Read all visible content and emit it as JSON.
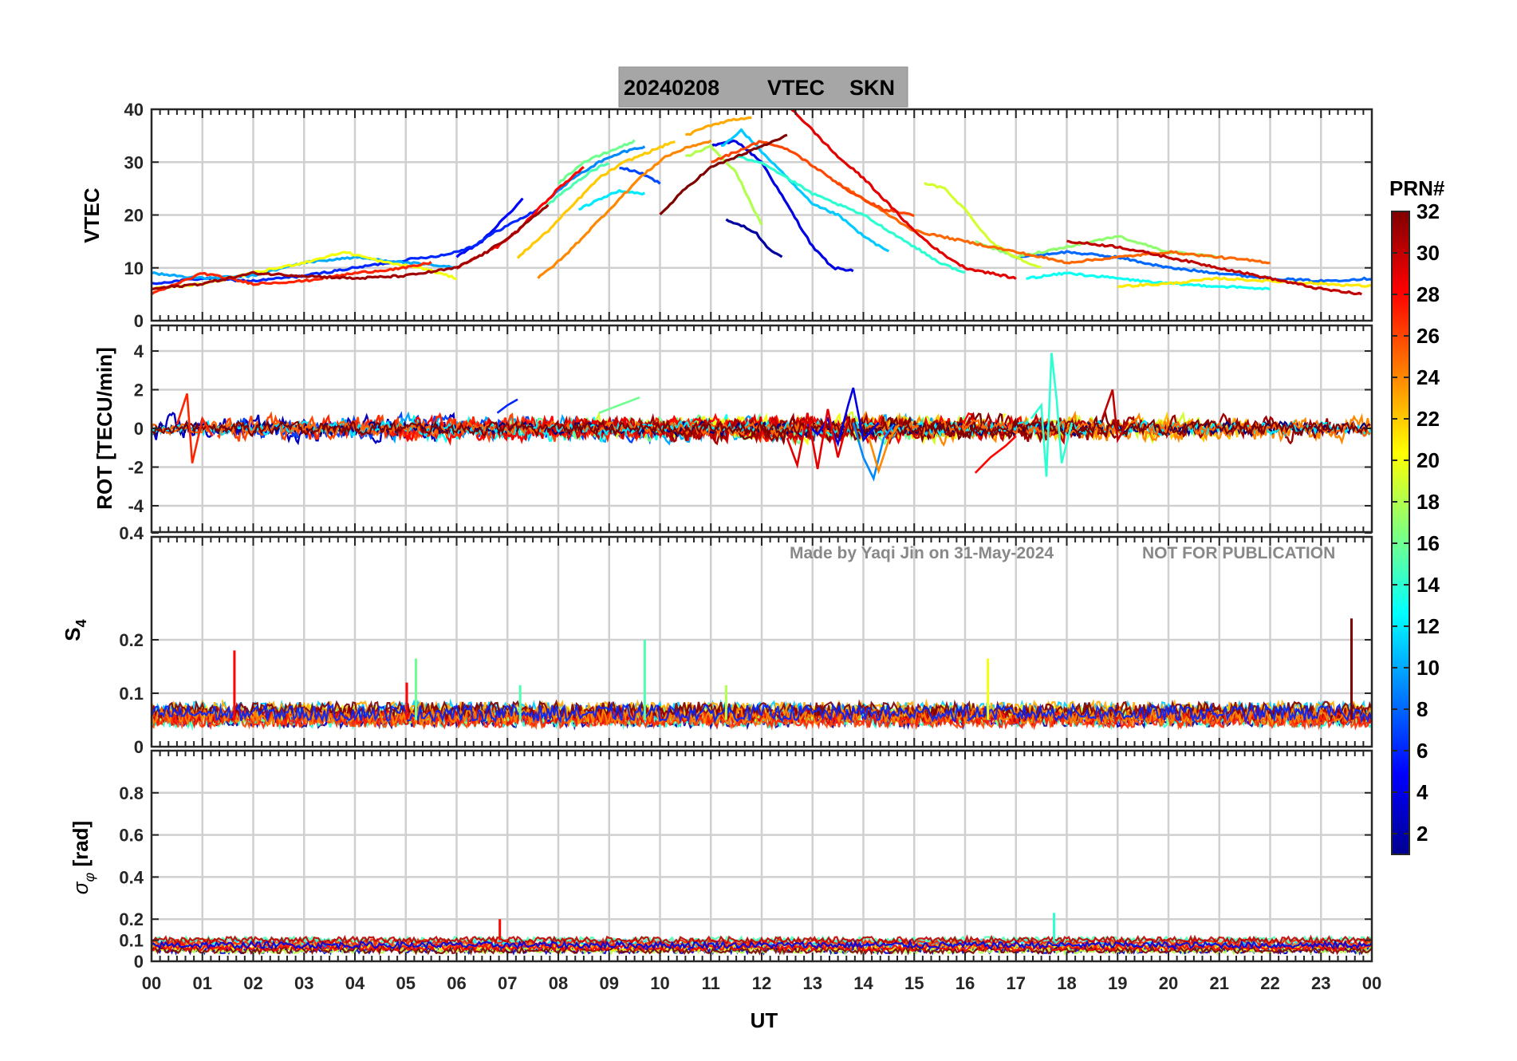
{
  "title": {
    "date": "20240208",
    "quantity": "VTEC",
    "station": "SKN"
  },
  "watermark": {
    "credit": "Made by Yaqi Jin on 31-May-2024",
    "notice": "NOT FOR PUBLICATION"
  },
  "xaxis": {
    "label": "UT",
    "ticks": [
      "00",
      "01",
      "02",
      "03",
      "04",
      "05",
      "06",
      "07",
      "08",
      "09",
      "10",
      "11",
      "12",
      "13",
      "14",
      "15",
      "16",
      "17",
      "18",
      "19",
      "20",
      "21",
      "22",
      "23",
      "00"
    ]
  },
  "colorbar": {
    "label": "PRN#",
    "ticks": [
      "2",
      "4",
      "6",
      "8",
      "10",
      "12",
      "14",
      "16",
      "18",
      "20",
      "22",
      "24",
      "26",
      "28",
      "30",
      "32"
    ],
    "range": [
      1,
      32
    ]
  },
  "chart_data": [
    {
      "type": "line",
      "id": "vtec",
      "title": "20240208 VTEC SKN",
      "ylabel": "VTEC",
      "yticks": [
        "0",
        "10",
        "20",
        "30",
        "40"
      ],
      "ylim": [
        0,
        40
      ],
      "xlim": [
        0,
        24
      ],
      "series": [
        {
          "name": "PRN 2",
          "prn": 2,
          "x": [
            11.3,
            11.6,
            11.9,
            12.1,
            12.4
          ],
          "y": [
            19,
            18,
            16.5,
            14,
            12
          ]
        },
        {
          "name": "PRN 4",
          "prn": 4,
          "x": [
            11.0,
            11.5,
            12.0,
            12.5,
            13.0,
            13.4,
            13.8
          ],
          "y": [
            33,
            34,
            30,
            22,
            14,
            10,
            9.5
          ]
        },
        {
          "name": "PRN 5",
          "prn": 5,
          "x": [
            6.0,
            6.5,
            7.0,
            7.3
          ],
          "y": [
            12,
            15,
            20,
            23
          ]
        },
        {
          "name": "PRN 6",
          "prn": 6,
          "x": [
            0,
            1,
            2,
            3,
            4,
            5,
            5.8,
            6.3,
            6.8,
            7.6
          ],
          "y": [
            7,
            8,
            7.5,
            8.5,
            10,
            11.5,
            12.5,
            14,
            17,
            21
          ]
        },
        {
          "name": "PRN 7",
          "prn": 7,
          "x": [
            9.2,
            9.6,
            10.0
          ],
          "y": [
            29,
            28,
            26
          ]
        },
        {
          "name": "PRN 8",
          "prn": 8,
          "x": [
            17,
            18,
            19,
            20,
            21,
            22,
            23,
            24
          ],
          "y": [
            12,
            13,
            12,
            10,
            9,
            8,
            7.5,
            8
          ]
        },
        {
          "name": "PRN 9",
          "prn": 9,
          "x": [
            7.8,
            8.3,
            8.8,
            9.3,
            9.7
          ],
          "y": [
            23,
            27,
            30,
            32,
            33
          ]
        },
        {
          "name": "PRN 10",
          "prn": 10,
          "x": [
            0,
            1,
            2,
            3,
            4,
            5,
            6
          ],
          "y": [
            9,
            8,
            8.5,
            11,
            12,
            11,
            10
          ]
        },
        {
          "name": "PRN 11",
          "prn": 11,
          "x": [
            11.2,
            11.6,
            12.0,
            12.5,
            13.0,
            13.5,
            14.0,
            14.5
          ],
          "y": [
            33,
            36,
            32,
            27,
            22,
            20,
            16,
            13
          ]
        },
        {
          "name": "PRN 12",
          "prn": 12,
          "x": [
            8.4,
            8.8,
            9.2,
            9.7
          ],
          "y": [
            21,
            23,
            24.5,
            24
          ]
        },
        {
          "name": "PRN 13",
          "prn": 13,
          "x": [
            17.2,
            18.0,
            19.0,
            20.0,
            21.0,
            22.0
          ],
          "y": [
            8,
            9,
            8,
            7,
            6.5,
            6
          ]
        },
        {
          "name": "PRN 14",
          "prn": 14,
          "x": [
            11.5,
            12.0,
            12.5,
            13.0,
            13.5,
            14.0,
            14.5,
            15.0,
            15.5,
            16.0
          ],
          "y": [
            31,
            30,
            27,
            24,
            22,
            20,
            17,
            14,
            11,
            9
          ]
        },
        {
          "name": "PRN 15",
          "prn": 15,
          "x": [
            7.3,
            7.8,
            8.2,
            8.6,
            9.0
          ],
          "y": [
            18,
            22,
            25,
            28,
            30
          ]
        },
        {
          "name": "PRN 16",
          "prn": 16,
          "x": [
            8.0,
            8.5,
            9.0,
            9.5
          ],
          "y": [
            26,
            30,
            32,
            34
          ]
        },
        {
          "name": "PRN 17",
          "prn": 17,
          "x": [
            16.2,
            17.0,
            18.0,
            19.0,
            20.0,
            21.0
          ],
          "y": [
            15,
            12,
            14,
            16,
            13,
            12
          ]
        },
        {
          "name": "PRN 18",
          "prn": 18,
          "x": [
            10.5,
            11.0,
            11.5,
            12.0
          ],
          "y": [
            31,
            33,
            28,
            18
          ]
        },
        {
          "name": "PRN 19",
          "prn": 19,
          "x": [
            15.2,
            15.6,
            16.0,
            16.5,
            17.0,
            17.5
          ],
          "y": [
            26,
            25,
            21,
            15,
            12,
            10
          ]
        },
        {
          "name": "PRN 20",
          "prn": 20,
          "x": [
            0,
            1,
            2,
            3,
            3.8,
            4.6,
            5.3,
            6.0
          ],
          "y": [
            6,
            7,
            9,
            11,
            13,
            11,
            10,
            8
          ]
        },
        {
          "name": "PRN 21",
          "prn": 21,
          "x": [
            19.0,
            20.0,
            21.0,
            22.0,
            23.0,
            24.0
          ],
          "y": [
            6.5,
            7,
            8,
            7.5,
            7,
            6.5
          ]
        },
        {
          "name": "PRN 22",
          "prn": 22,
          "x": [
            7.2,
            7.8,
            8.3,
            8.8,
            9.3,
            9.8,
            10.3
          ],
          "y": [
            12,
            17,
            22,
            27,
            30,
            32,
            34
          ]
        },
        {
          "name": "PRN 23",
          "prn": 23,
          "x": [
            10.5,
            11.0,
            11.4,
            11.8
          ],
          "y": [
            35,
            37,
            38,
            38.5
          ]
        },
        {
          "name": "PRN 24",
          "prn": 24,
          "x": [
            7.6,
            8.1,
            8.6,
            9.1,
            9.6,
            10.1,
            10.6,
            11.0
          ],
          "y": [
            8,
            12,
            17,
            22,
            27,
            31,
            33,
            34
          ]
        },
        {
          "name": "PRN 25",
          "prn": 25,
          "x": [
            13.5,
            14.0,
            14.5,
            15.0,
            15.5,
            16.0,
            17.0,
            18.0,
            19.0,
            20.0,
            21.0,
            22.0
          ],
          "y": [
            26,
            23,
            20,
            17,
            16,
            15,
            13,
            11,
            12,
            13,
            12,
            11
          ]
        },
        {
          "name": "PRN 26",
          "prn": 26,
          "x": [
            11.0,
            11.5,
            12.0,
            12.6,
            13.2,
            13.8,
            14.4,
            15.0
          ],
          "y": [
            30,
            32,
            34,
            32,
            28,
            24,
            21,
            20
          ]
        },
        {
          "name": "PRN 27",
          "prn": 27,
          "x": [
            0,
            0.5,
            1.0,
            1.5,
            2.0,
            3.0,
            4.0,
            5.0,
            5.5
          ],
          "y": [
            5,
            7,
            9,
            8,
            7,
            7.5,
            9,
            10,
            11
          ]
        },
        {
          "name": "PRN 28",
          "prn": 28,
          "x": [
            6.0,
            6.4,
            6.8,
            7.2,
            7.6,
            8.0,
            8.5
          ],
          "y": [
            10,
            12,
            14,
            17,
            21,
            25,
            29
          ]
        },
        {
          "name": "PRN 29",
          "prn": 29,
          "x": [
            12.5,
            13.0,
            13.5,
            14.0,
            14.5,
            15.0,
            15.5,
            16.0,
            16.5,
            17.0
          ],
          "y": [
            41,
            36,
            31,
            27,
            22,
            17,
            13,
            10,
            9,
            8
          ]
        },
        {
          "name": "PRN 30",
          "prn": 30,
          "x": [
            18.0,
            19.0,
            20.0,
            21.0,
            22.0,
            23.0,
            23.8
          ],
          "y": [
            15,
            14,
            12,
            10,
            8,
            6,
            5
          ]
        },
        {
          "name": "PRN 31",
          "prn": 31,
          "x": [
            0,
            1,
            2,
            3,
            4,
            5,
            6,
            6.6,
            7.2,
            7.8
          ],
          "y": [
            6,
            7,
            9,
            8.5,
            8,
            8.5,
            10,
            13,
            17,
            22
          ]
        },
        {
          "name": "PRN 32",
          "prn": 32,
          "x": [
            10.0,
            10.5,
            11.0,
            11.5,
            12.0,
            12.5
          ],
          "y": [
            20,
            25,
            29,
            31,
            33,
            35
          ]
        }
      ]
    },
    {
      "type": "line",
      "id": "rot",
      "ylabel": "ROT [TECU/min]",
      "yticks": [
        "-4",
        "-2",
        "0",
        "2",
        "4"
      ],
      "ylim": [
        -5.5,
        5.5
      ],
      "xlim": [
        0,
        24
      ],
      "series": [
        {
          "name": "PRN 4",
          "prn": 4,
          "x": [
            12.9,
            13.1,
            13.3,
            13.5,
            13.7,
            13.8,
            14.0,
            14.3
          ],
          "y": [
            0.2,
            -0.3,
            0.5,
            -0.8,
            1.2,
            2.1,
            -0.6,
            0.3
          ]
        },
        {
          "name": "PRN 9",
          "prn": 9,
          "x": [
            13.8,
            14.0,
            14.2,
            14.4,
            14.6
          ],
          "y": [
            0.3,
            -1.5,
            -2.6,
            -0.5,
            0.2
          ]
        },
        {
          "name": "PRN 14",
          "prn": 14,
          "x": [
            17.3,
            17.5,
            17.6,
            17.7,
            17.8,
            17.9,
            18.1
          ],
          "y": [
            0.5,
            1.2,
            -2.5,
            3.9,
            1.5,
            -1.8,
            0.3
          ]
        },
        {
          "name": "PRN 29",
          "prn": 29,
          "x": [
            12.5,
            12.7,
            12.9,
            13.1,
            13.3,
            13.5,
            13.7
          ],
          "y": [
            -0.5,
            -1.9,
            0.8,
            -2.1,
            1.0,
            -1.5,
            0.5
          ]
        },
        {
          "name": "PRN 27",
          "prn": 27,
          "x": [
            0.5,
            0.7,
            0.8,
            1.0,
            1.2
          ],
          "y": [
            0.2,
            1.8,
            -1.8,
            0.5,
            -0.4
          ]
        },
        {
          "name": "PRN 24",
          "prn": 24,
          "x": [
            14.1,
            14.3,
            14.5,
            14.7
          ],
          "y": [
            -0.4,
            -2.2,
            -0.6,
            0.2
          ]
        },
        {
          "name": "PRN 30",
          "prn": 30,
          "x": [
            18.7,
            18.9,
            19.0,
            19.2
          ],
          "y": [
            0.5,
            2.0,
            -0.6,
            0.3
          ]
        },
        {
          "name": "PRN 28",
          "prn": 28,
          "x": [
            16.2,
            16.5,
            16.8,
            17.0
          ],
          "y": [
            -2.3,
            -1.5,
            -0.9,
            -0.4
          ]
        },
        {
          "name": "PRN 6",
          "prn": 6,
          "x": [
            6.8,
            7.0,
            7.2
          ],
          "y": [
            0.8,
            1.2,
            1.5
          ]
        },
        {
          "name": "PRN 16",
          "prn": 16,
          "x": [
            8.8,
            9.2,
            9.6
          ],
          "y": [
            0.8,
            1.2,
            1.6
          ]
        }
      ]
    },
    {
      "type": "line",
      "id": "s4",
      "ylabel": "S4",
      "yticks": [
        "0",
        "0.1",
        "0.2",
        "0.4"
      ],
      "ylim": [
        0,
        0.4
      ],
      "xlim": [
        0,
        24
      ],
      "spikes": [
        {
          "name": "PRN 28",
          "prn": 28,
          "x": 1.63,
          "y": 0.18
        },
        {
          "name": "PRN 28",
          "prn": 28,
          "x": 5.02,
          "y": 0.12
        },
        {
          "name": "PRN 16",
          "prn": 16,
          "x": 5.2,
          "y": 0.165
        },
        {
          "name": "PRN 15",
          "prn": 15,
          "x": 7.25,
          "y": 0.115
        },
        {
          "name": "PRN 15",
          "prn": 15,
          "x": 9.7,
          "y": 0.2
        },
        {
          "name": "PRN 18",
          "prn": 18,
          "x": 11.3,
          "y": 0.115
        },
        {
          "name": "PRN 20",
          "prn": 20,
          "x": 16.45,
          "y": 0.165
        },
        {
          "name": "PRN 32",
          "prn": 32,
          "x": 23.6,
          "y": 0.24
        }
      ]
    },
    {
      "type": "line",
      "id": "sigma_phi",
      "ylabel": "σφ [rad]",
      "yticks": [
        "0",
        "0.1",
        "0.2",
        "0.4",
        "0.6",
        "0.8"
      ],
      "ylim": [
        0,
        1.0
      ],
      "xlim": [
        0,
        24
      ],
      "spikes": [
        {
          "name": "PRN 28",
          "prn": 28,
          "x": 6.85,
          "y": 0.2
        },
        {
          "name": "PRN 14",
          "prn": 14,
          "x": 17.75,
          "y": 0.23
        }
      ]
    }
  ]
}
